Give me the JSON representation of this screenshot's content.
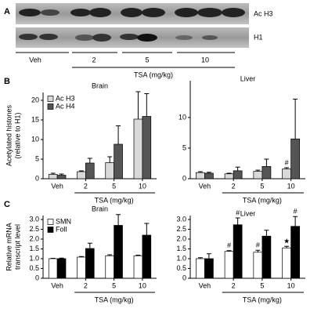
{
  "panel_a": {
    "panel": "A",
    "blot_labels": [
      "Ac H3",
      "H1"
    ],
    "groups": [
      "Veh",
      "2",
      "5",
      "10"
    ],
    "xlabel": "TSA (mg/kg)"
  },
  "chart_data": [
    {
      "type": "bar",
      "panel": "B",
      "title": "Brain",
      "ylabel": [
        "Acetylated histones",
        "(relative to H1)"
      ],
      "xlabel": "TSA (mg/kg)",
      "categories": [
        "Veh",
        "2",
        "5",
        "10"
      ],
      "legend": true,
      "series": [
        {
          "name": "Ac H3",
          "color": "#d9d9d9",
          "values": [
            1.1,
            1.8,
            4.1,
            15.2
          ],
          "errors": [
            0.3,
            0.2,
            1.5,
            7
          ]
        },
        {
          "name": "Ac H4",
          "color": "#555555",
          "values": [
            0.9,
            4.0,
            8.8,
            15.9
          ],
          "errors": [
            0.3,
            1.2,
            4.7,
            5.8
          ]
        }
      ],
      "ylim": [
        0,
        22
      ],
      "yticks": [
        0,
        5,
        10,
        15,
        20
      ]
    },
    {
      "type": "bar",
      "title": "Liver",
      "xlabel": "TSA (mg/kg)",
      "categories": [
        "Veh",
        "2",
        "5",
        "10"
      ],
      "legend": false,
      "series": [
        {
          "color": "#d9d9d9",
          "values": [
            1.0,
            0.8,
            1.2,
            1.6
          ],
          "errors": [
            0.15,
            0.1,
            0.2,
            0.2
          ],
          "annotations": [
            null,
            null,
            null,
            "#"
          ]
        },
        {
          "color": "#555555",
          "values": [
            0.9,
            1.3,
            2.0,
            6.5
          ],
          "errors": [
            0.15,
            0.6,
            1.2,
            6.5
          ]
        }
      ],
      "ylim": [
        0,
        16
      ],
      "yticks": [
        0,
        5,
        10
      ]
    },
    {
      "type": "bar",
      "panel": "C",
      "title": "Brain",
      "ylabel": [
        "Relative mRNA",
        "transcript level"
      ],
      "xlabel": "TSA (mg/kg)",
      "categories": [
        "Veh",
        "2",
        "5",
        "10"
      ],
      "legend": true,
      "series": [
        {
          "name": "SMN",
          "color": "#ffffff",
          "values": [
            1.0,
            1.08,
            1.15,
            1.15
          ],
          "errors": [
            0.02,
            0.03,
            0.05,
            0.03
          ]
        },
        {
          "name": "Foll",
          "color": "#000000",
          "values": [
            1.0,
            1.52,
            2.7,
            2.2
          ],
          "errors": [
            0.03,
            0.27,
            0.55,
            0.6
          ]
        }
      ],
      "ylim": [
        0,
        3.2
      ],
      "yticks": [
        0,
        0.5,
        {
          "value": 1,
          "label": "1.0"
        },
        1.5,
        {
          "value": 2,
          "label": "2.0"
        },
        2.5,
        {
          "value": 3,
          "label": "3.0"
        }
      ]
    },
    {
      "type": "bar",
      "title": "Liver",
      "xlabel": "TSA (mg/kg)",
      "categories": [
        "Veh",
        "2",
        "5",
        "10"
      ],
      "legend": false,
      "series": [
        {
          "color": "#ffffff",
          "values": [
            1.0,
            1.37,
            1.33,
            1.55
          ],
          "errors": [
            0.05,
            0.04,
            0.1,
            0.08
          ],
          "annotations": [
            null,
            "#",
            "#",
            "★"
          ]
        },
        {
          "color": "#000000",
          "values": [
            1.0,
            2.73,
            2.15,
            2.65
          ],
          "errors": [
            0.25,
            0.35,
            0.3,
            0.5
          ],
          "annotations": [
            null,
            "#",
            null,
            "#"
          ]
        }
      ],
      "ylim": [
        0,
        3.2
      ],
      "yticks": [
        0,
        0.5,
        {
          "value": 1,
          "label": "1.0"
        },
        1.5,
        {
          "value": 2,
          "label": "2.0"
        },
        2.5,
        {
          "value": 3,
          "label": "3.0"
        }
      ]
    }
  ]
}
